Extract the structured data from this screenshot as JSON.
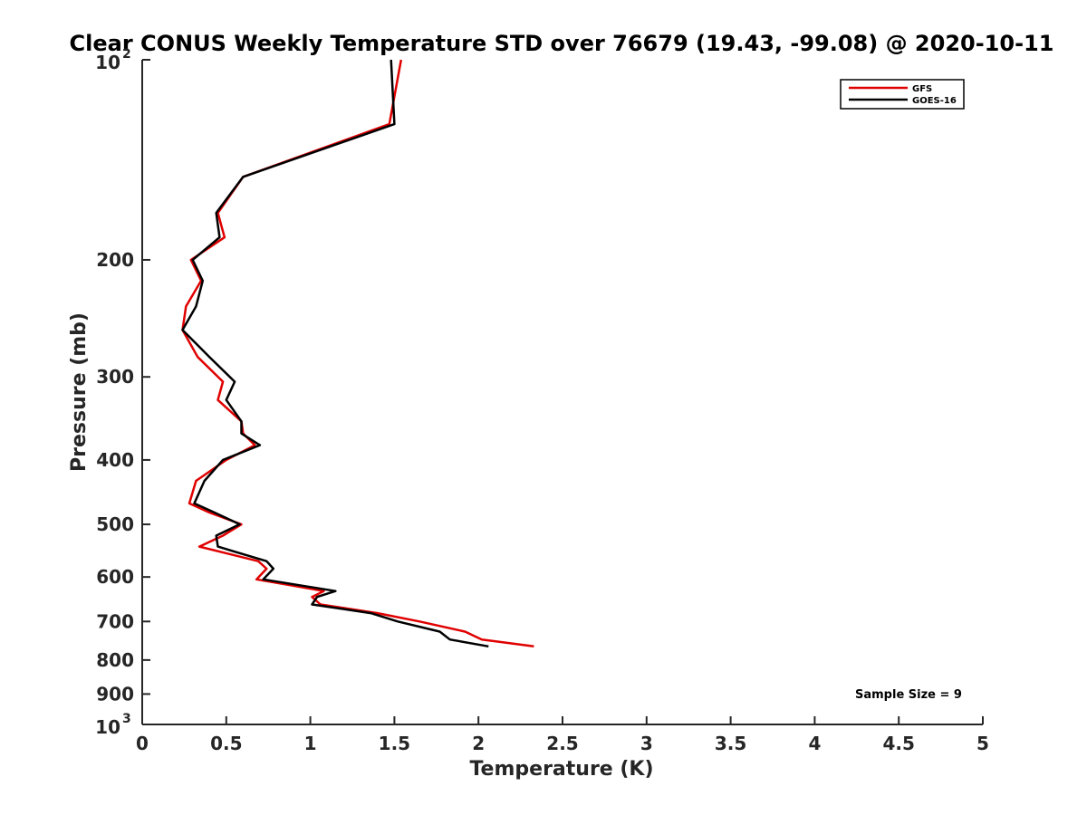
{
  "chart_data": {
    "type": "line",
    "title": "Clear CONUS Weekly Temperature STD over 76679 (19.43, -99.08) @ 2020-10-11",
    "xlabel": "Temperature (K)",
    "ylabel": "Pressure (mb)",
    "xlim": [
      0,
      5
    ],
    "ylim": [
      100,
      1000
    ],
    "y_scale": "log",
    "y_reversed": true,
    "x_ticks": [
      {
        "value": 0,
        "label": "0"
      },
      {
        "value": 0.5,
        "label": "0.5"
      },
      {
        "value": 1,
        "label": "1"
      },
      {
        "value": 1.5,
        "label": "1.5"
      },
      {
        "value": 2,
        "label": "2"
      },
      {
        "value": 2.5,
        "label": "2.5"
      },
      {
        "value": 3,
        "label": "3"
      },
      {
        "value": 3.5,
        "label": "3.5"
      },
      {
        "value": 4,
        "label": "4"
      },
      {
        "value": 4.5,
        "label": "4.5"
      },
      {
        "value": 5,
        "label": "5"
      }
    ],
    "y_ticks": [
      {
        "value": 100,
        "base": "10",
        "exp": "2"
      },
      {
        "value": 200,
        "label": "200"
      },
      {
        "value": 300,
        "label": "300"
      },
      {
        "value": 400,
        "label": "400"
      },
      {
        "value": 500,
        "label": "500"
      },
      {
        "value": 600,
        "label": "600"
      },
      {
        "value": 700,
        "label": "700"
      },
      {
        "value": 800,
        "label": "800"
      },
      {
        "value": 900,
        "label": "900"
      },
      {
        "value": 1000,
        "base": "10",
        "exp": "3"
      }
    ],
    "grid": false,
    "legend_position": "top-right",
    "annotation": "Sample Size = 9",
    "series": [
      {
        "name": "GFS",
        "color": "#e00000",
        "points": [
          [
            1.54,
            100
          ],
          [
            1.47,
            125
          ],
          [
            0.6,
            150
          ],
          [
            0.45,
            170
          ],
          [
            0.49,
            185
          ],
          [
            0.29,
            200
          ],
          [
            0.35,
            215
          ],
          [
            0.26,
            235
          ],
          [
            0.24,
            255
          ],
          [
            0.33,
            280
          ],
          [
            0.48,
            305
          ],
          [
            0.45,
            325
          ],
          [
            0.59,
            350
          ],
          [
            0.6,
            365
          ],
          [
            0.67,
            380
          ],
          [
            0.5,
            400
          ],
          [
            0.32,
            430
          ],
          [
            0.28,
            465
          ],
          [
            0.4,
            480
          ],
          [
            0.59,
            500
          ],
          [
            0.48,
            520
          ],
          [
            0.34,
            540
          ],
          [
            0.69,
            568
          ],
          [
            0.74,
            583
          ],
          [
            0.68,
            605
          ],
          [
            1.08,
            630
          ],
          [
            1.01,
            643
          ],
          [
            1.06,
            660
          ],
          [
            1.4,
            680
          ],
          [
            1.65,
            700
          ],
          [
            1.92,
            725
          ],
          [
            2.02,
            745
          ],
          [
            2.33,
            763
          ]
        ]
      },
      {
        "name": "GOES-16",
        "color": "#000000",
        "points": [
          [
            1.48,
            100
          ],
          [
            1.5,
            125
          ],
          [
            0.6,
            150
          ],
          [
            0.44,
            170
          ],
          [
            0.46,
            185
          ],
          [
            0.3,
            200
          ],
          [
            0.36,
            215
          ],
          [
            0.32,
            235
          ],
          [
            0.24,
            255
          ],
          [
            0.4,
            280
          ],
          [
            0.55,
            305
          ],
          [
            0.5,
            325
          ],
          [
            0.59,
            350
          ],
          [
            0.59,
            365
          ],
          [
            0.7,
            380
          ],
          [
            0.48,
            400
          ],
          [
            0.37,
            430
          ],
          [
            0.31,
            465
          ],
          [
            0.43,
            480
          ],
          [
            0.58,
            500
          ],
          [
            0.44,
            520
          ],
          [
            0.45,
            540
          ],
          [
            0.74,
            568
          ],
          [
            0.78,
            583
          ],
          [
            0.72,
            605
          ],
          [
            1.15,
            630
          ],
          [
            1.04,
            643
          ],
          [
            1.01,
            660
          ],
          [
            1.36,
            680
          ],
          [
            1.52,
            700
          ],
          [
            1.77,
            725
          ],
          [
            1.83,
            745
          ],
          [
            2.06,
            763
          ]
        ]
      }
    ]
  }
}
